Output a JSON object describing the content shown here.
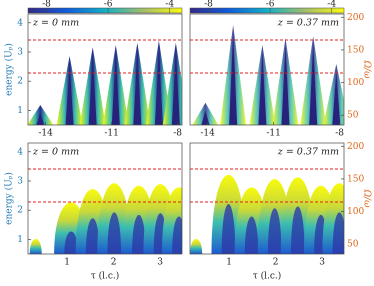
{
  "chart_data": [
    {
      "type": "heatmap",
      "annotation": "z = 0 mm",
      "xlim": [
        -14.8,
        -7.8
      ],
      "xticks": [
        -14,
        -11,
        -8
      ],
      "ylim": [
        0.5,
        4.3
      ],
      "yticks": [
        1,
        2,
        3,
        4
      ],
      "ylabel": "energy (Uₚ)",
      "clim": [
        -8.6,
        -3.6
      ],
      "cticks": [
        -8,
        -6,
        -4
      ],
      "reference_lines": [
        3.41,
        2.28
      ],
      "reference_color": "#e02020"
    },
    {
      "type": "heatmap",
      "annotation": "z = 0.37 mm",
      "xlim": [
        -14.8,
        -7.8
      ],
      "xticks": [
        -14,
        -11,
        -8
      ],
      "ylim": [
        0.5,
        4.3
      ],
      "y2lim": [
        35,
        205
      ],
      "y2ticks": [
        50,
        100,
        150,
        200
      ],
      "y2label": "Ω/ω",
      "clim": [
        -8.6,
        -3.6
      ],
      "cticks": [
        -8,
        -6,
        -4
      ],
      "reference_lines": [
        3.41,
        2.28
      ],
      "reference_color": "#e02020"
    },
    {
      "type": "heatmap",
      "annotation": "z = 0 mm",
      "xlim": [
        0.16,
        3.47
      ],
      "xticks": [
        1,
        2,
        3
      ],
      "xlabel": "τ (l.c.)",
      "ylim": [
        0.5,
        4.3
      ],
      "yticks": [
        1,
        2,
        3,
        4
      ],
      "ylabel": "energy (Uₚ)",
      "reference_lines": [
        3.41,
        2.28
      ],
      "reference_color": "#e02020"
    },
    {
      "type": "heatmap",
      "annotation": "z = 0.37 mm",
      "xlim": [
        0.16,
        3.47
      ],
      "xticks": [
        1,
        2,
        3
      ],
      "xlabel": "τ (l.c.)",
      "ylim": [
        0.5,
        4.3
      ],
      "y2lim": [
        35,
        205
      ],
      "y2ticks": [
        50,
        100,
        150,
        200
      ],
      "y2label": "Ω/ω",
      "reference_lines": [
        3.41,
        2.28
      ],
      "reference_color": "#e02020"
    }
  ]
}
